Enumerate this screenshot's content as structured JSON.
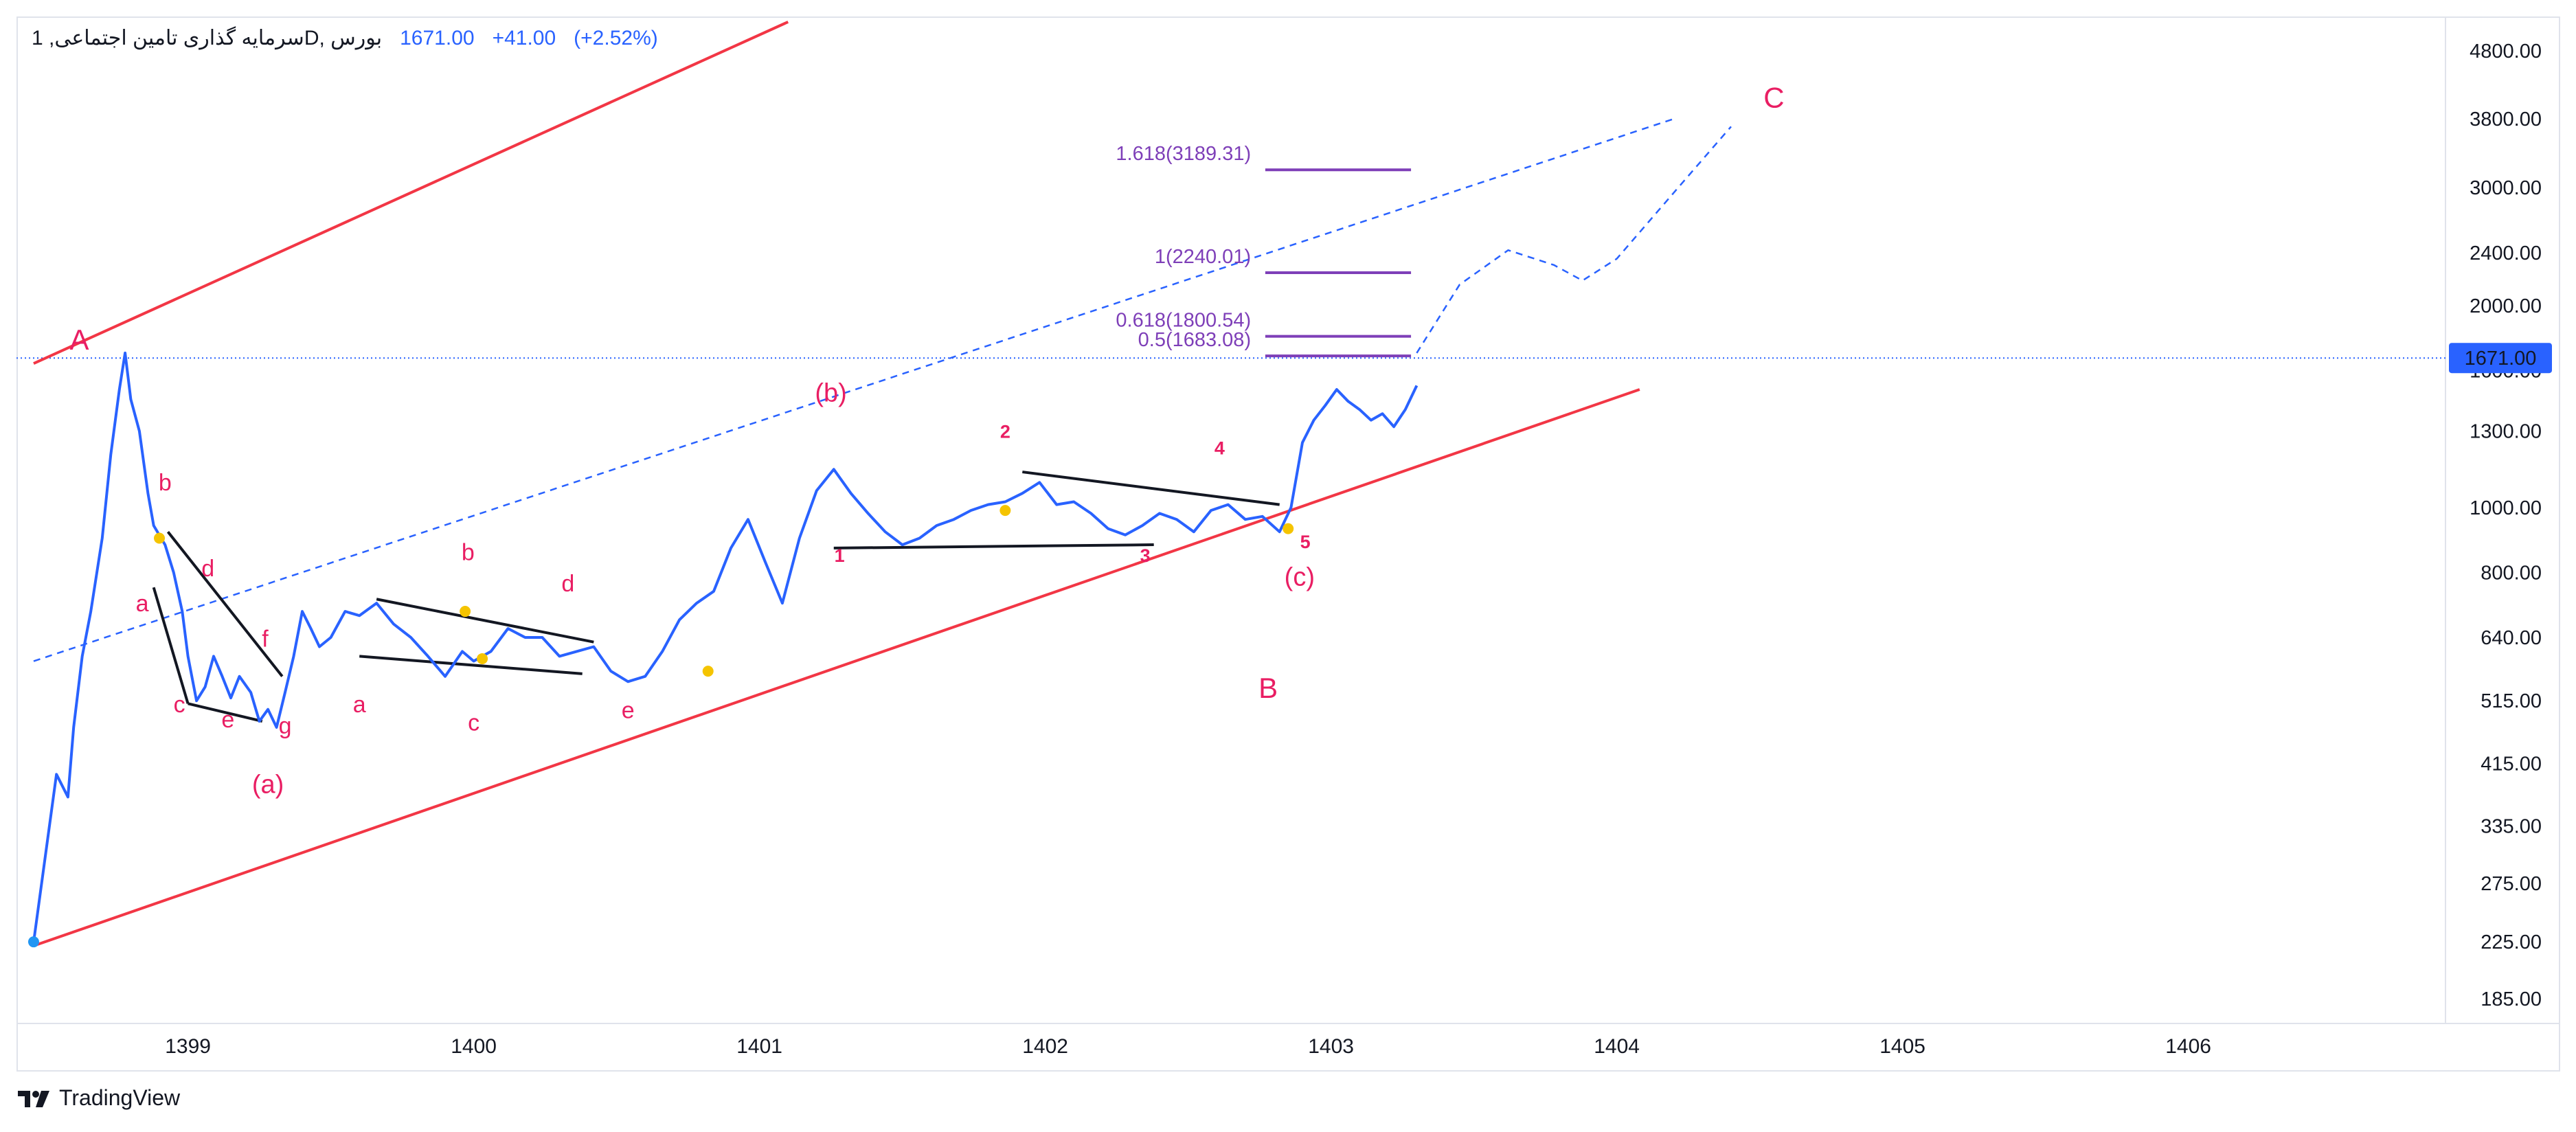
{
  "legend": {
    "symbol": "سرمایه گذاری تامین اجتماعی, 1D, بورس",
    "price": "1671.00",
    "change": "+41.00",
    "change_pct": "(+2.52%)"
  },
  "brand": {
    "name": "TradingView",
    "icon": "tradingview-logo-icon"
  },
  "colors": {
    "price_line": "#2962ff",
    "channel": "#f23645",
    "wave_label": "#e91e63",
    "fib": "#7e3fb8",
    "marker": "#f5c400"
  },
  "chart_data": {
    "type": "line",
    "title": "",
    "xlabel": "",
    "ylabel": "",
    "y_scale": "log",
    "ylim": [
      170,
      5400
    ],
    "x_range": [
      1398.4,
      1406.9
    ],
    "grid": false,
    "last_price": 1671.0,
    "last_price_label": "1671.00",
    "y_ticks": [
      185,
      225,
      275,
      335,
      415,
      515,
      640,
      800,
      1000,
      1300,
      1600,
      2000,
      2400,
      3000,
      3800,
      4800
    ],
    "y_tick_labels": [
      "185.00",
      "225.00",
      "275.00",
      "335.00",
      "415.00",
      "515.00",
      "640.00",
      "800.00",
      "1000.00",
      "1300.00",
      "1600.00",
      "2000.00",
      "2400.00",
      "3000.00",
      "3800.00",
      "4800.00"
    ],
    "x_ticks": [
      1399,
      1400,
      1401,
      1402,
      1403,
      1404,
      1405,
      1406
    ],
    "x_tick_labels": [
      "1399",
      "1400",
      "1401",
      "1402",
      "1403",
      "1404",
      "1405",
      "1406"
    ],
    "series": [
      {
        "values_x": [
          1398.46,
          1398.5,
          1398.54,
          1398.58,
          1398.6,
          1398.63,
          1398.66,
          1398.7,
          1398.73,
          1398.76,
          1398.78,
          1398.8,
          1398.83,
          1398.86,
          1398.88,
          1398.92,
          1398.95,
          1398.98,
          1399.0,
          1399.03,
          1399.06,
          1399.09,
          1399.12,
          1399.15,
          1399.18,
          1399.22,
          1399.25,
          1399.28,
          1399.31,
          1399.34,
          1399.37,
          1399.4,
          1399.43,
          1399.46,
          1399.5,
          1399.55,
          1399.6,
          1399.66,
          1399.72,
          1399.78,
          1399.84,
          1399.9,
          1399.96,
          1400.0,
          1400.06,
          1400.12,
          1400.18,
          1400.24,
          1400.3,
          1400.36,
          1400.42,
          1400.48,
          1400.54,
          1400.6,
          1400.66,
          1400.72,
          1400.78,
          1400.84,
          1400.9,
          1400.96,
          1401.02,
          1401.08,
          1401.14,
          1401.2,
          1401.26,
          1401.32,
          1401.38,
          1401.44,
          1401.5,
          1401.56,
          1401.62,
          1401.68,
          1401.74,
          1401.8,
          1401.86,
          1401.92,
          1401.98,
          1402.04,
          1402.1,
          1402.16,
          1402.22,
          1402.28,
          1402.34,
          1402.4,
          1402.46,
          1402.52,
          1402.58,
          1402.64,
          1402.7,
          1402.76,
          1402.82,
          1402.86,
          1402.9,
          1402.94,
          1402.98,
          1403.02,
          1403.06,
          1403.1,
          1403.14,
          1403.18,
          1403.22,
          1403.26,
          1403.3
        ],
        "values": [
          225,
          300,
          400,
          370,
          470,
          600,
          700,
          900,
          1200,
          1500,
          1700,
          1450,
          1300,
          1050,
          940,
          880,
          800,
          700,
          600,
          515,
          540,
          600,
          560,
          520,
          560,
          530,
          480,
          500,
          470,
          530,
          600,
          700,
          660,
          620,
          640,
          700,
          690,
          720,
          670,
          640,
          600,
          560,
          610,
          590,
          610,
          660,
          640,
          640,
          600,
          610,
          620,
          570,
          550,
          560,
          610,
          680,
          720,
          750,
          870,
          960,
          830,
          720,
          900,
          1060,
          1140,
          1050,
          980,
          920,
          880,
          900,
          940,
          960,
          990,
          1010,
          1020,
          1050,
          1090,
          1010,
          1020,
          980,
          930,
          910,
          940,
          980,
          960,
          920,
          990,
          1010,
          960,
          970,
          920,
          1000,
          1250,
          1350,
          1420,
          1500,
          1440,
          1400,
          1350,
          1380,
          1320,
          1400,
          1520
        ]
      }
    ]
  },
  "annotations": {
    "fib_levels": [
      {
        "label": "1.618(3189.31)",
        "value": 3189.31
      },
      {
        "label": "1(2240.01)",
        "value": 2240.01
      },
      {
        "label": "0.618(1800.54)",
        "value": 1800.54
      },
      {
        "label": "0.5(1683.08)",
        "value": 1683.08
      }
    ],
    "wave_labels": [
      {
        "text": "A",
        "x": 1398.62,
        "y": 1720,
        "size": "big"
      },
      {
        "text": "B",
        "x": 1402.78,
        "y": 520,
        "size": "big"
      },
      {
        "text": "C",
        "x": 1404.55,
        "y": 3950,
        "size": "big"
      },
      {
        "text": "(a)",
        "x": 1399.28,
        "y": 375,
        "size": "mid"
      },
      {
        "text": "(b)",
        "x": 1401.25,
        "y": 1440,
        "size": "mid"
      },
      {
        "text": "(c)",
        "x": 1402.89,
        "y": 765,
        "size": "mid"
      },
      {
        "text": "b",
        "x": 1398.92,
        "y": 1060,
        "size": "small"
      },
      {
        "text": "a",
        "x": 1398.84,
        "y": 700,
        "size": "small"
      },
      {
        "text": "d",
        "x": 1399.07,
        "y": 790,
        "size": "small"
      },
      {
        "text": "c",
        "x": 1398.97,
        "y": 495,
        "size": "small"
      },
      {
        "text": "e",
        "x": 1399.14,
        "y": 470,
        "size": "small"
      },
      {
        "text": "f",
        "x": 1399.27,
        "y": 620,
        "size": "small"
      },
      {
        "text": "g",
        "x": 1399.34,
        "y": 460,
        "size": "small"
      },
      {
        "text": "a",
        "x": 1399.6,
        "y": 495,
        "size": "small"
      },
      {
        "text": "b",
        "x": 1399.98,
        "y": 835,
        "size": "small"
      },
      {
        "text": "c",
        "x": 1400.0,
        "y": 465,
        "size": "small"
      },
      {
        "text": "d",
        "x": 1400.33,
        "y": 750,
        "size": "small"
      },
      {
        "text": "e",
        "x": 1400.54,
        "y": 485,
        "size": "small"
      },
      {
        "text": "1",
        "x": 1401.28,
        "y": 830,
        "size": "tiny"
      },
      {
        "text": "2",
        "x": 1401.86,
        "y": 1270,
        "size": "tiny"
      },
      {
        "text": "3",
        "x": 1402.35,
        "y": 830,
        "size": "tiny"
      },
      {
        "text": "4",
        "x": 1402.61,
        "y": 1200,
        "size": "tiny"
      },
      {
        "text": "5",
        "x": 1402.91,
        "y": 870,
        "size": "tiny"
      }
    ]
  }
}
